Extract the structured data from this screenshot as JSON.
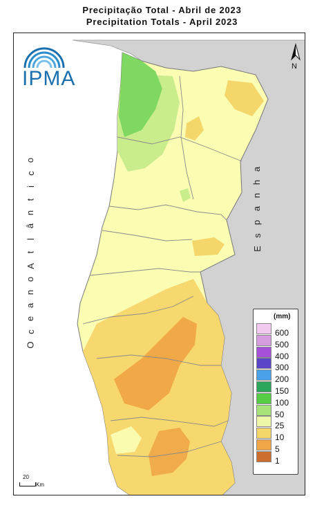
{
  "title": {
    "line1": "Precipitação Total  -  Abril de 2023",
    "line2": "Precipitation Totals - April 2023"
  },
  "logo": {
    "text": "IPMA",
    "icon": "ipma-arcs-logo"
  },
  "north_arrow": {
    "label": "N",
    "icon": "north-arrow-icon"
  },
  "labels": {
    "ocean_letters": [
      "O",
      "c",
      "e",
      "a",
      "n",
      "o",
      " ",
      "A",
      "t",
      "l",
      "â",
      "n",
      "t",
      "i",
      "c",
      "o"
    ],
    "spain_letters": [
      "E",
      "s",
      "p",
      "a",
      "n",
      "h",
      "a"
    ]
  },
  "scale": {
    "value": "20",
    "unit": "Km"
  },
  "legend": {
    "unit": "(mm)",
    "items": [
      {
        "label": "600",
        "color": "#f1c9f1"
      },
      {
        "label": "500",
        "color": "#d79be0"
      },
      {
        "label": "400",
        "color": "#a64fd8"
      },
      {
        "label": "300",
        "color": "#5a45c8"
      },
      {
        "label": "200",
        "color": "#4aa1e8"
      },
      {
        "label": "150",
        "color": "#2ca65a"
      },
      {
        "label": "100",
        "color": "#55cc44"
      },
      {
        "label": "50",
        "color": "#a8e27a"
      },
      {
        "label": "25",
        "color": "#eef7a8"
      },
      {
        "label": "10",
        "color": "#f5d66a"
      },
      {
        "label": "5",
        "color": "#f0a646"
      },
      {
        "label": "1",
        "color": "#cc6e2e"
      }
    ]
  },
  "colors": {
    "land_neighbor": "#d2d2d2",
    "zone_5_10": "#fbfdb2",
    "zone_10": "#f5d66a",
    "zone_5": "#f0a646",
    "zone_25": "#c9ec8c",
    "zone_50": "#7fd861",
    "district_border": "#8a8a8a"
  }
}
